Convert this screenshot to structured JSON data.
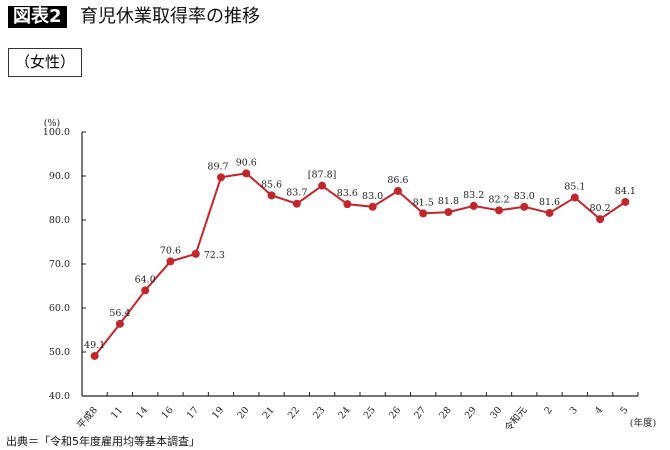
{
  "header": {
    "badge": "図表2",
    "title": "育児休業取得率の推移",
    "subtitle": "（女性）"
  },
  "source": "出典＝「令和5年度雇用均等基本調査」",
  "chart_data": {
    "type": "line",
    "title": "育児休業取得率の推移",
    "ylabel": "(%)",
    "xlabel": "(年度)",
    "ylim": [
      40,
      100
    ],
    "yticks": [
      "40.0",
      "50.0",
      "60.0",
      "70.0",
      "80.0",
      "90.0",
      "100.0"
    ],
    "categories": [
      "平成8",
      "11",
      "14",
      "16",
      "17",
      "19",
      "20",
      "21",
      "22",
      "23",
      "24",
      "25",
      "26",
      "27",
      "28",
      "29",
      "30",
      "令和元",
      "2",
      "3",
      "4",
      "5"
    ],
    "values": [
      49.1,
      56.4,
      64.0,
      70.6,
      72.3,
      89.7,
      90.6,
      85.6,
      83.7,
      87.8,
      83.6,
      83.0,
      86.6,
      81.5,
      81.8,
      83.2,
      82.2,
      83.0,
      81.6,
      85.1,
      80.2,
      84.1
    ],
    "labels": [
      "49.1",
      "56.4",
      "64.0",
      "70.6",
      "72.3",
      "89.7",
      "90.6",
      "85.6",
      "83.7",
      "[87.8]",
      "83.6",
      "83.0",
      "86.6",
      "81.5",
      "81.8",
      "83.2",
      "82.2",
      "83.0",
      "81.6",
      "85.1",
      "80.2",
      "84.1"
    ],
    "color": "#c0272d",
    "grid": false,
    "legend": "none"
  }
}
